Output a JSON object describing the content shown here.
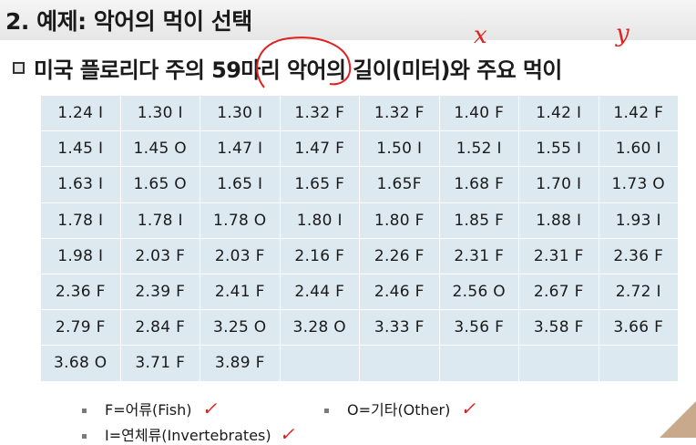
{
  "title": "2. 예제: 악어의 먹이 선택",
  "subtitle": "미국 플로리다 주의 59마리 악어의 길이(미터)와 주요 먹이",
  "table": {
    "rows": [
      [
        "1.24 I",
        "1.30 I",
        "1.30 I",
        "1.32 F",
        "1.32 F",
        "1.40 F",
        "1.42 I",
        "1.42 F"
      ],
      [
        "1.45 I",
        "1.45 O",
        "1.47 I",
        "1.47 F",
        "1.50 I",
        "1.52 I",
        "1.55 I",
        "1.60 I"
      ],
      [
        "1.63 I",
        "1.65 O",
        "1.65 I",
        "1.65 F",
        "1.65F",
        "1.68 F",
        "1.70 I",
        "1.73 O"
      ],
      [
        "1.78 I",
        "1.78 I",
        "1.78 O",
        "1.80 I",
        "1.80 F",
        "1.85 F",
        "1.88 I",
        "1.93 I"
      ],
      [
        "1.98 I",
        "2.03 F",
        "2.03 F",
        "2.16 F",
        "2.26 F",
        "2.31 F",
        "2.31 F",
        "2.36 F"
      ],
      [
        "2.36 F",
        "2.39 F",
        "2.41 F",
        "2.44 F",
        "2.46 F",
        "2.56 O",
        "2.67 F",
        "2.72 I"
      ],
      [
        "2.79 F",
        "2.84 F",
        "3.25 O",
        "3.28 O",
        "3.33 F",
        "3.56 F",
        "3.58 F",
        "3.66 F"
      ],
      [
        "3.68 O",
        "3.71 F",
        "3.89 F",
        "",
        "",
        "",
        "",
        ""
      ]
    ]
  },
  "legend": {
    "fish": "F=어류(Fish)",
    "other": "O=기타(Other)",
    "invertebrates": "I=연체류(Invertebrates)"
  },
  "annotations": {
    "x": "x",
    "y": "y",
    "check": "✓"
  },
  "colors": {
    "cell_bg": "#dde9f1",
    "annotation": "#e02020"
  }
}
